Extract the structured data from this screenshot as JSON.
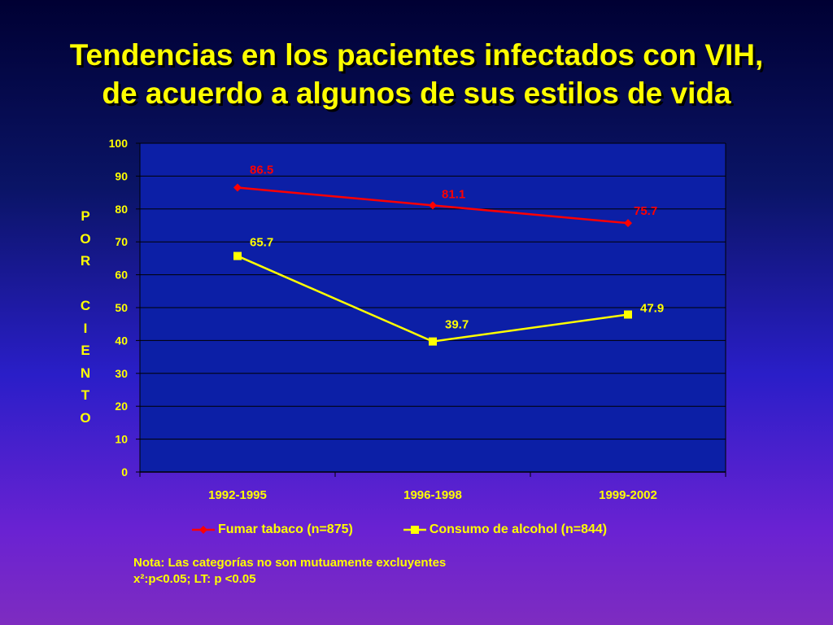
{
  "title": {
    "line1": "Tendencias en los pacientes infectados con VIH,",
    "line2": "de acuerdo a algunos de sus estilos de vida"
  },
  "ylabel_letters": [
    "P",
    "O",
    "R",
    "",
    "C",
    "I",
    "E",
    "N",
    "T",
    "O"
  ],
  "note": {
    "line1": "Nota: Las categorías no son mutuamente excluyentes",
    "line2": "x²:p<0.05;  LT: p <0.05"
  },
  "chart_data": {
    "type": "line",
    "title": "Tendencias en los pacientes infectados con VIH, de acuerdo a algunos de sus estilos de vida",
    "ylabel": "POR CIENTO",
    "xlabel": "",
    "categories": [
      "1992-1995",
      "1996-1998",
      "1999-2002"
    ],
    "ylim": [
      0,
      100
    ],
    "yticks": [
      0,
      10,
      20,
      30,
      40,
      50,
      60,
      70,
      80,
      90,
      100
    ],
    "grid": true,
    "legend": "bottom",
    "series": [
      {
        "name": "Fumar tabaco (n=875)",
        "values": [
          86.5,
          81.1,
          75.7
        ],
        "labels": [
          "86.5",
          "81.1",
          "75.7"
        ],
        "color": "#ff0000",
        "marker": "diamond"
      },
      {
        "name": "Consumo de alcohol (n=844)",
        "values": [
          65.7,
          39.7,
          47.9
        ],
        "labels": [
          "65.7",
          "39.7",
          "47.9"
        ],
        "color": "#ffff00",
        "marker": "square"
      }
    ]
  },
  "colors": {
    "text": "#ffff00",
    "plot_bg": "#0c1fa6",
    "grid": "#000000"
  }
}
